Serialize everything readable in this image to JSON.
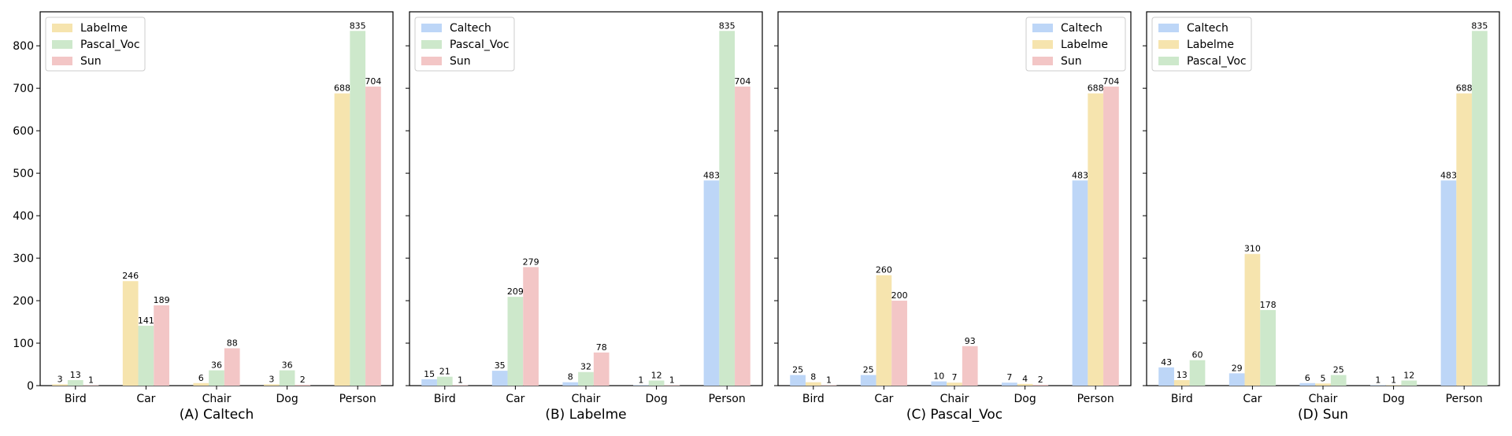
{
  "colors": {
    "Caltech": "#bdd6f7",
    "Labelme": "#f6e4ae",
    "Pascal_Voc": "#cde8cb",
    "Sun": "#f3c6c6"
  },
  "chart_data": [
    {
      "type": "bar",
      "xlabel": "(A) Caltech",
      "categories": [
        "Bird",
        "Car",
        "Chair",
        "Dog",
        "Person"
      ],
      "ylim": [
        0,
        880
      ],
      "yticks": [
        0,
        100,
        200,
        300,
        400,
        500,
        600,
        700,
        800
      ],
      "legend_position": "top-left",
      "series": [
        {
          "name": "Labelme",
          "values": [
            3,
            246,
            6,
            3,
            688
          ]
        },
        {
          "name": "Pascal_Voc",
          "values": [
            13,
            141,
            36,
            36,
            835
          ]
        },
        {
          "name": "Sun",
          "values": [
            1,
            189,
            88,
            2,
            704
          ]
        }
      ]
    },
    {
      "type": "bar",
      "xlabel": "(B) Labelme",
      "categories": [
        "Bird",
        "Car",
        "Chair",
        "Dog",
        "Person"
      ],
      "ylim": [
        0,
        880
      ],
      "yticks": [
        0,
        100,
        200,
        300,
        400,
        500,
        600,
        700,
        800
      ],
      "legend_position": "top-left",
      "series": [
        {
          "name": "Caltech",
          "values": [
            15,
            35,
            8,
            1,
            483
          ]
        },
        {
          "name": "Pascal_Voc",
          "values": [
            21,
            209,
            32,
            12,
            835
          ]
        },
        {
          "name": "Sun",
          "values": [
            1,
            279,
            78,
            1,
            704
          ]
        }
      ]
    },
    {
      "type": "bar",
      "xlabel": "(C) Pascal_Voc",
      "categories": [
        "Bird",
        "Car",
        "Chair",
        "Dog",
        "Person"
      ],
      "ylim": [
        0,
        880
      ],
      "yticks": [
        0,
        100,
        200,
        300,
        400,
        500,
        600,
        700,
        800
      ],
      "legend_position": "top-right",
      "series": [
        {
          "name": "Caltech",
          "values": [
            25,
            25,
            10,
            7,
            483
          ]
        },
        {
          "name": "Labelme",
          "values": [
            8,
            260,
            7,
            4,
            688
          ]
        },
        {
          "name": "Sun",
          "values": [
            1,
            200,
            93,
            2,
            704
          ]
        }
      ]
    },
    {
      "type": "bar",
      "xlabel": "(D) Sun",
      "categories": [
        "Bird",
        "Car",
        "Chair",
        "Dog",
        "Person"
      ],
      "ylim": [
        0,
        880
      ],
      "yticks": [
        0,
        100,
        200,
        300,
        400,
        500,
        600,
        700,
        800
      ],
      "legend_position": "top-left",
      "series": [
        {
          "name": "Caltech",
          "values": [
            43,
            29,
            6,
            1,
            483
          ]
        },
        {
          "name": "Labelme",
          "values": [
            13,
            310,
            5,
            1,
            688
          ]
        },
        {
          "name": "Pascal_Voc",
          "values": [
            60,
            178,
            25,
            12,
            835
          ]
        }
      ]
    }
  ]
}
